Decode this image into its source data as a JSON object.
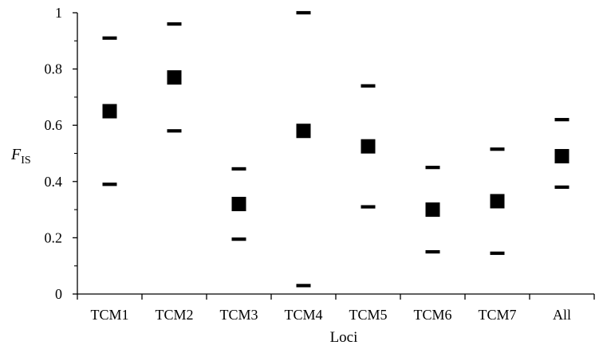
{
  "chart_data": {
    "type": "scatter",
    "xlabel": "Loci",
    "ylabel_main": "F",
    "ylabel_sub": "IS",
    "categories": [
      "TCM1",
      "TCM2",
      "TCM3",
      "TCM4",
      "TCM5",
      "TCM6",
      "TCM7",
      "All"
    ],
    "values": [
      0.65,
      0.77,
      0.32,
      0.58,
      0.525,
      0.3,
      0.33,
      0.49
    ],
    "upper": [
      0.91,
      0.96,
      0.445,
      1.0,
      0.74,
      0.45,
      0.515,
      0.62
    ],
    "lower": [
      0.39,
      0.58,
      0.195,
      0.03,
      0.31,
      0.15,
      0.145,
      0.38
    ],
    "ylim": [
      0,
      1
    ],
    "yticks": [
      "0",
      "0.2",
      "0.4",
      "0.6",
      "0.8",
      "1"
    ],
    "grid": false
  }
}
